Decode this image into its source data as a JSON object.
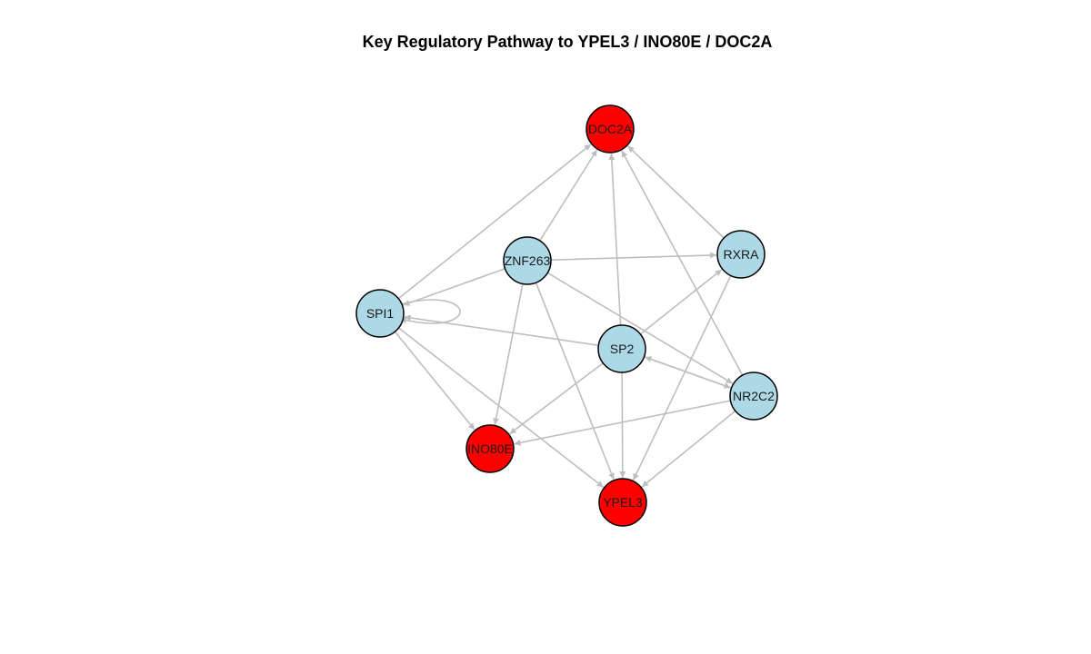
{
  "title": "Key Regulatory Pathway to YPEL3 / INO80E / DOC2A",
  "colors": {
    "target_node": "#ff0000",
    "regulator_node": "#add8e6",
    "edge": "#bebebe",
    "node_border": "#000000"
  },
  "nodes": [
    {
      "id": "DOC2A",
      "label": "DOC2A",
      "type": "target"
    },
    {
      "id": "ZNF263",
      "label": "ZNF263",
      "type": "regulator"
    },
    {
      "id": "RXRA",
      "label": "RXRA",
      "type": "regulator"
    },
    {
      "id": "SPI1",
      "label": "SPI1",
      "type": "regulator"
    },
    {
      "id": "SP2",
      "label": "SP2",
      "type": "regulator"
    },
    {
      "id": "NR2C2",
      "label": "NR2C2",
      "type": "regulator"
    },
    {
      "id": "INO80E",
      "label": "INO80E",
      "type": "target"
    },
    {
      "id": "YPEL3",
      "label": "YPEL3",
      "type": "target"
    }
  ],
  "edges": [
    {
      "from": "SPI1",
      "to": "DOC2A"
    },
    {
      "from": "ZNF263",
      "to": "DOC2A"
    },
    {
      "from": "SP2",
      "to": "DOC2A"
    },
    {
      "from": "RXRA",
      "to": "DOC2A"
    },
    {
      "from": "NR2C2",
      "to": "DOC2A"
    },
    {
      "from": "ZNF263",
      "to": "RXRA"
    },
    {
      "from": "ZNF263",
      "to": "SPI1"
    },
    {
      "from": "ZNF263",
      "to": "INO80E"
    },
    {
      "from": "ZNF263",
      "to": "YPEL3"
    },
    {
      "from": "ZNF263",
      "to": "NR2C2"
    },
    {
      "from": "SPI1",
      "to": "SPI1"
    },
    {
      "from": "SPI1",
      "to": "INO80E"
    },
    {
      "from": "SPI1",
      "to": "YPEL3"
    },
    {
      "from": "SP2",
      "to": "SPI1"
    },
    {
      "from": "SP2",
      "to": "RXRA"
    },
    {
      "from": "SP2",
      "to": "INO80E"
    },
    {
      "from": "SP2",
      "to": "YPEL3"
    },
    {
      "from": "SP2",
      "to": "NR2C2"
    },
    {
      "from": "NR2C2",
      "to": "SP2"
    },
    {
      "from": "RXRA",
      "to": "YPEL3"
    },
    {
      "from": "NR2C2",
      "to": "INO80E"
    },
    {
      "from": "NR2C2",
      "to": "YPEL3"
    }
  ]
}
